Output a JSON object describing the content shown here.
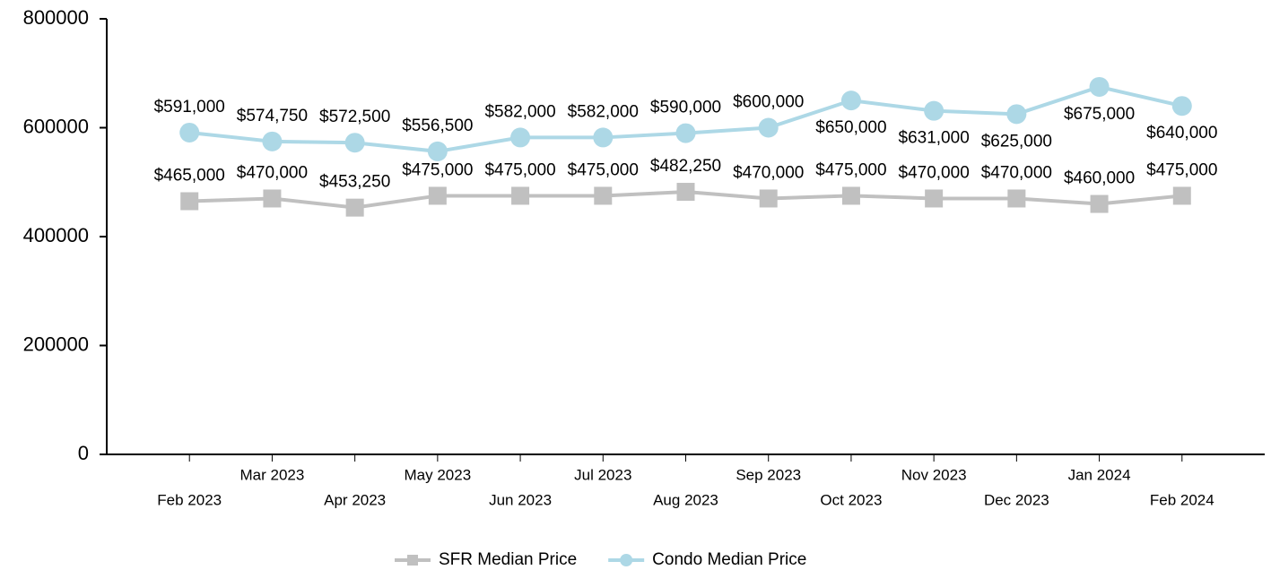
{
  "chart_data": {
    "type": "line",
    "categories": [
      "Feb 2023",
      "Mar 2023",
      "Apr 2023",
      "May 2023",
      "Jun 2023",
      "Jul 2023",
      "Aug 2023",
      "Sep 2023",
      "Oct 2023",
      "Nov 2023",
      "Dec 2023",
      "Jan 2024",
      "Feb 2024"
    ],
    "series": [
      {
        "name": "SFR Median Price",
        "color": "#c0c0c0",
        "marker": "square",
        "values": [
          465000,
          470000,
          453250,
          475000,
          475000,
          475000,
          482250,
          470000,
          475000,
          470000,
          470000,
          460000,
          475000
        ],
        "value_labels": [
          "$465,000",
          "$470,000",
          "$453,250",
          "$475,000",
          "$475,000",
          "$475,000",
          "$482,250",
          "$470,000",
          "$475,000",
          "$470,000",
          "$470,000",
          "$460,000",
          "$475,000"
        ]
      },
      {
        "name": "Condo Median Price",
        "color": "#add8e6",
        "marker": "circle",
        "values": [
          591000,
          574750,
          572500,
          556500,
          582000,
          582000,
          590000,
          600000,
          650000,
          631000,
          625000,
          675000,
          640000
        ],
        "value_labels": [
          "$591,000",
          "$574,750",
          "$572,500",
          "$556,500",
          "$582,000",
          "$582,000",
          "$590,000",
          "$600,000",
          "$650,000",
          "$631,000",
          "$625,000",
          "$675,000",
          "$640,000"
        ]
      }
    ],
    "ylim": [
      0,
      800000
    ],
    "yticks": [
      0,
      200000,
      400000,
      600000,
      800000
    ],
    "grid": false,
    "legend": "bottom"
  }
}
